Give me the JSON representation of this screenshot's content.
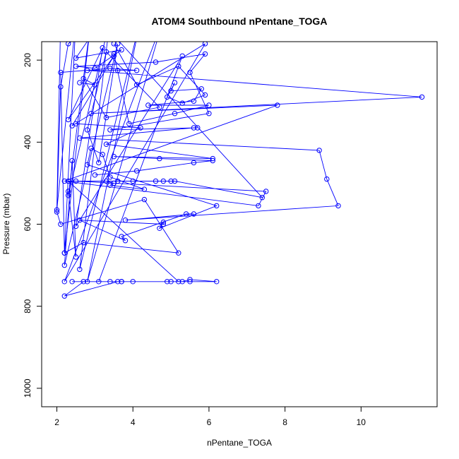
{
  "chart_data": {
    "type": "line",
    "title": "ATOM4 Southbound nPentane_TOGA",
    "xlabel": "nPentane_TOGA",
    "ylabel": "Pressure (mbar)",
    "xlim": [
      1.6,
      12.0
    ],
    "ylim": [
      1045,
      155
    ],
    "y_reversed": true,
    "x_ticks": [
      2,
      4,
      6,
      8,
      10
    ],
    "y_ticks": [
      200,
      400,
      600,
      800,
      1000
    ],
    "grid": false,
    "legend": "none",
    "marker": "open-circle",
    "series": [
      {
        "color": "#0000ff",
        "points": [
          [
            2.1,
            100
          ],
          [
            2.0,
            565
          ],
          [
            2.5,
            100
          ],
          [
            2.2,
            670
          ],
          [
            2.9,
            100
          ],
          [
            2.3,
            530
          ],
          [
            3.4,
            100
          ],
          [
            2.6,
            710
          ],
          [
            4.2,
            100
          ],
          [
            2.8,
            740
          ],
          [
            4.8,
            100
          ],
          [
            2.2,
            740
          ],
          [
            5.9,
            160
          ],
          [
            2.4,
            360
          ],
          [
            3.5,
            190
          ],
          [
            2.3,
            345
          ],
          [
            3.2,
            170
          ],
          [
            2.5,
            605
          ],
          [
            5.3,
            190
          ],
          [
            3.1,
            740
          ],
          [
            5.5,
            740
          ],
          [
            3.4,
            740
          ],
          [
            3.7,
            740
          ],
          [
            5.3,
            740
          ],
          [
            5.5,
            735
          ],
          [
            6.2,
            740
          ],
          [
            3.7,
            740
          ],
          [
            4.0,
            740
          ],
          [
            4.9,
            740
          ],
          [
            5.0,
            740
          ],
          [
            2.4,
            740
          ],
          [
            2.7,
            740
          ],
          [
            2.2,
            775
          ],
          [
            3.6,
            740
          ],
          [
            5.2,
            740
          ],
          [
            2.3,
            495
          ],
          [
            3.6,
            495
          ],
          [
            4.0,
            495
          ],
          [
            4.8,
            495
          ],
          [
            5.0,
            495
          ],
          [
            4.6,
            495
          ],
          [
            2.5,
            495
          ],
          [
            7.5,
            520
          ],
          [
            7.3,
            555
          ],
          [
            2.2,
            495
          ],
          [
            7.8,
            310
          ],
          [
            2.9,
            330
          ],
          [
            11.6,
            290
          ],
          [
            2.8,
            225
          ],
          [
            3.6,
            225
          ],
          [
            4.1,
            225
          ],
          [
            3.4,
            220
          ],
          [
            2.1,
            230
          ],
          [
            2.2,
            670
          ],
          [
            2.7,
            645
          ],
          [
            5.2,
            670
          ],
          [
            4.3,
            540
          ],
          [
            2.1,
            600
          ],
          [
            2.0,
            570
          ],
          [
            2.1,
            265
          ],
          [
            2.3,
            160
          ],
          [
            3.2,
            100
          ],
          [
            2.5,
            195
          ],
          [
            3.7,
            175
          ],
          [
            3.0,
            220
          ],
          [
            2.5,
            215
          ],
          [
            4.6,
            205
          ],
          [
            5.9,
            185
          ],
          [
            5.5,
            230
          ],
          [
            6.0,
            330
          ],
          [
            3.4,
            370
          ],
          [
            5.7,
            365
          ],
          [
            5.6,
            365
          ],
          [
            2.6,
            390
          ],
          [
            8.9,
            420
          ],
          [
            9.1,
            490
          ],
          [
            9.4,
            555
          ],
          [
            3.8,
            590
          ],
          [
            5.6,
            575
          ],
          [
            5.4,
            575
          ],
          [
            3.7,
            630
          ],
          [
            3.8,
            640
          ],
          [
            2.6,
            590
          ],
          [
            4.8,
            600
          ],
          [
            4.8,
            595
          ],
          [
            4.7,
            610
          ],
          [
            6.2,
            555
          ],
          [
            2.8,
            455
          ],
          [
            2.9,
            415
          ],
          [
            3.2,
            430
          ],
          [
            3.4,
            485
          ],
          [
            4.3,
            515
          ],
          [
            3.4,
            505
          ],
          [
            3.5,
            500
          ],
          [
            3.3,
            495
          ],
          [
            5.1,
            495
          ],
          [
            7.4,
            535
          ],
          [
            3.1,
            100
          ]
        ]
      },
      {
        "color": "#0000ff",
        "points": [
          [
            3.5,
            185
          ],
          [
            3.9,
            355
          ],
          [
            5.1,
            330
          ],
          [
            6.0,
            310
          ],
          [
            4.4,
            310
          ],
          [
            5.6,
            300
          ],
          [
            5.8,
            270
          ],
          [
            5.0,
            275
          ],
          [
            5.1,
            255
          ],
          [
            4.9,
            290
          ],
          [
            5.3,
            305
          ],
          [
            5.9,
            285
          ],
          [
            5.2,
            215
          ],
          [
            4.1,
            260
          ],
          [
            3.5,
            160
          ]
        ]
      },
      {
        "color": "#0000ff",
        "points": [
          [
            3.0,
            480
          ],
          [
            4.1,
            470
          ],
          [
            5.6,
            450
          ],
          [
            6.1,
            445
          ],
          [
            4.7,
            440
          ],
          [
            3.5,
            435
          ],
          [
            6.1,
            440
          ],
          [
            3.3,
            405
          ],
          [
            4.2,
            365
          ],
          [
            2.5,
            355
          ]
        ]
      },
      {
        "color": "#0000ff",
        "points": [
          [
            2.6,
            255
          ],
          [
            3.0,
            260
          ],
          [
            2.7,
            245
          ],
          [
            3.3,
            340
          ],
          [
            4.7,
            315
          ],
          [
            3.3,
            180
          ],
          [
            2.8,
            370
          ],
          [
            3.1,
            450
          ],
          [
            3.6,
            160
          ],
          [
            2.2,
            700
          ],
          [
            2.4,
            445
          ],
          [
            2.5,
            680
          ],
          [
            2.3,
            520
          ]
        ]
      }
    ]
  }
}
